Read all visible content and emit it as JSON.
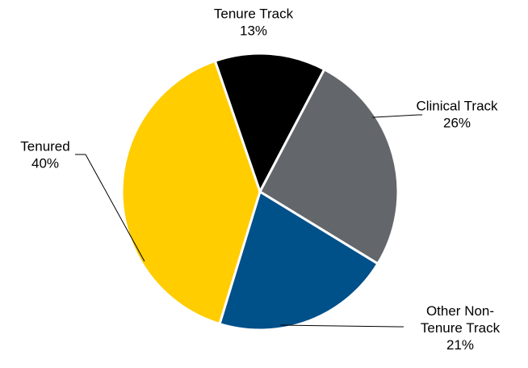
{
  "chart_data": {
    "type": "pie",
    "title": "",
    "slices": [
      {
        "label_lines": [
          "Tenure Track"
        ],
        "value_label": "13%",
        "value": 13,
        "color": "#000000"
      },
      {
        "label_lines": [
          "Clinical Track"
        ],
        "value_label": "26%",
        "value": 26,
        "color": "#63666a"
      },
      {
        "label_lines": [
          "Other Non-",
          "Tenure Track"
        ],
        "value_label": "21%",
        "value": 21,
        "color": "#00508a"
      },
      {
        "label_lines": [
          "Tenured"
        ],
        "value_label": "40%",
        "value": 40,
        "color": "#ffcd00"
      }
    ],
    "start_angle_deg": -19,
    "direction": "clockwise",
    "legend": "none",
    "labels": "outside-with-leader-lines"
  }
}
